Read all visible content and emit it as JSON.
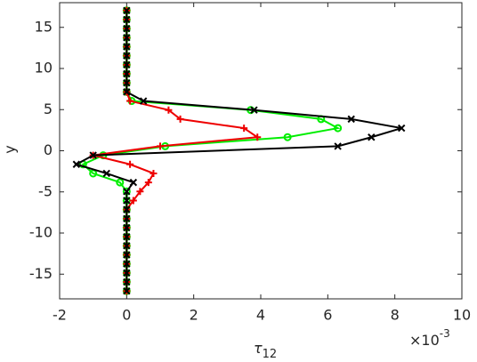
{
  "chart_data": {
    "type": "line",
    "xlabel": {
      "symbol": "τ",
      "subscript": "12"
    },
    "x_multiplier": {
      "base": "×10",
      "power": "-3"
    },
    "ylabel": "y",
    "xlim": [
      -2,
      10
    ],
    "xticks": [
      -2,
      0,
      2,
      4,
      6,
      8,
      10
    ],
    "ylim": [
      -18,
      18
    ],
    "yticks": [
      -15,
      -10,
      -5,
      0,
      5,
      10,
      15
    ],
    "y": [
      -17.05,
      -15.95,
      -14.85,
      -13.75,
      -12.65,
      -11.55,
      -10.45,
      -9.35,
      -8.25,
      -7.15,
      -6.05,
      -4.95,
      -3.85,
      -2.75,
      -1.65,
      -0.55,
      0.55,
      1.65,
      2.75,
      3.85,
      4.95,
      6.05,
      7.15,
      8.25,
      9.35,
      10.45,
      11.55,
      12.65,
      13.75,
      14.85,
      15.95,
      17.05
    ],
    "series": [
      {
        "color": "#00ee00",
        "marker": "circle",
        "values": [
          0,
          0,
          0,
          0,
          0,
          0,
          0,
          0,
          0,
          0,
          0,
          0,
          -0.2,
          -1.0,
          -1.3,
          -0.7,
          1.15,
          4.8,
          6.3,
          5.8,
          3.7,
          0.15,
          0,
          0,
          0,
          0,
          0,
          0,
          0,
          0,
          0,
          0
        ]
      },
      {
        "color": "#ee0000",
        "marker": "plus",
        "values": [
          0,
          0,
          0,
          0,
          0,
          0,
          0,
          0,
          0,
          0,
          0.2,
          0.4,
          0.65,
          0.8,
          0.1,
          -1.0,
          1.0,
          3.9,
          3.5,
          1.6,
          1.25,
          0.1,
          0,
          0,
          0,
          0,
          0,
          0,
          0,
          0,
          0,
          0
        ]
      },
      {
        "color": "#000000",
        "marker": "cross",
        "values": [
          0,
          0,
          0,
          0,
          0,
          0,
          0,
          0,
          0,
          0,
          0,
          0,
          0.2,
          -0.6,
          -1.5,
          -1.0,
          6.3,
          7.3,
          8.2,
          6.7,
          3.8,
          0.5,
          0,
          0,
          0,
          0,
          0,
          0,
          0,
          0,
          0,
          0
        ]
      }
    ]
  }
}
